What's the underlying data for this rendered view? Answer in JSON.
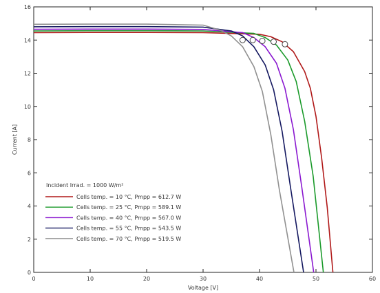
{
  "chart_data": {
    "type": "line",
    "title": "",
    "xlabel": "Voltage [V]",
    "ylabel": "Current [A]",
    "xlim": [
      0,
      60
    ],
    "ylim": [
      0,
      16
    ],
    "x_ticks": [
      0,
      10,
      20,
      30,
      40,
      50,
      60
    ],
    "y_ticks": [
      0,
      2,
      4,
      6,
      8,
      10,
      12,
      14,
      16
    ],
    "grid": false,
    "legend_position": "lower-left",
    "legend_header": "Incident Irrad. = 1000 W/m²",
    "series": [
      {
        "name": "Cells temp. = 10 °C, Pmpp = 612.7 W",
        "color": "#b01818",
        "points": [
          [
            0,
            14.45
          ],
          [
            10,
            14.46
          ],
          [
            20,
            14.46
          ],
          [
            30,
            14.45
          ],
          [
            40,
            14.35
          ],
          [
            42,
            14.2
          ],
          [
            44,
            13.9
          ],
          [
            46,
            13.3
          ],
          [
            48,
            12.1
          ],
          [
            49,
            11.1
          ],
          [
            50,
            9.4
          ],
          [
            51,
            6.9
          ],
          [
            52,
            3.9
          ],
          [
            53,
            0
          ]
        ],
        "mpp": [
          44.5,
          13.75
        ]
      },
      {
        "name": "Cells temp. = 25 °C, Pmpp = 589.1 W",
        "color": "#1a9a2a",
        "points": [
          [
            0,
            14.55
          ],
          [
            10,
            14.56
          ],
          [
            20,
            14.56
          ],
          [
            30,
            14.55
          ],
          [
            39,
            14.4
          ],
          [
            41,
            14.15
          ],
          [
            43,
            13.7
          ],
          [
            45,
            12.8
          ],
          [
            46.5,
            11.5
          ],
          [
            48,
            9.1
          ],
          [
            49.5,
            5.8
          ],
          [
            51.3,
            0
          ]
        ],
        "mpp": [
          42.5,
          13.9
        ]
      },
      {
        "name": "Cells temp. = 40 °C, Pmpp = 567.0 W",
        "color": "#8a18d0",
        "points": [
          [
            0,
            14.65
          ],
          [
            10,
            14.66
          ],
          [
            20,
            14.66
          ],
          [
            30,
            14.64
          ],
          [
            37,
            14.45
          ],
          [
            39,
            14.15
          ],
          [
            41,
            13.6
          ],
          [
            43,
            12.6
          ],
          [
            44.5,
            11.1
          ],
          [
            46,
            8.6
          ],
          [
            47.5,
            5.1
          ],
          [
            49.6,
            0
          ]
        ],
        "mpp": [
          40.5,
          13.95
        ]
      },
      {
        "name": "Cells temp. = 55 °C, Pmpp = 543.5 W",
        "color": "#141860",
        "points": [
          [
            0,
            14.8
          ],
          [
            10,
            14.81
          ],
          [
            20,
            14.81
          ],
          [
            30,
            14.78
          ],
          [
            35,
            14.55
          ],
          [
            37,
            14.25
          ],
          [
            39,
            13.6
          ],
          [
            41,
            12.5
          ],
          [
            42.5,
            11.0
          ],
          [
            44,
            8.5
          ],
          [
            45.5,
            5.1
          ],
          [
            47.8,
            0
          ]
        ],
        "mpp": [
          38.8,
          14.0
        ]
      },
      {
        "name": "Cells temp. = 70 °C, Pmpp = 519.5 W",
        "color": "#909090",
        "points": [
          [
            0,
            14.95
          ],
          [
            10,
            14.96
          ],
          [
            20,
            14.96
          ],
          [
            30,
            14.9
          ],
          [
            33,
            14.6
          ],
          [
            35,
            14.25
          ],
          [
            37,
            13.6
          ],
          [
            39,
            12.4
          ],
          [
            40.5,
            10.9
          ],
          [
            42,
            8.3
          ],
          [
            43.5,
            5.0
          ],
          [
            46.1,
            0
          ]
        ],
        "mpp": [
          37.0,
          14.0
        ]
      }
    ]
  }
}
